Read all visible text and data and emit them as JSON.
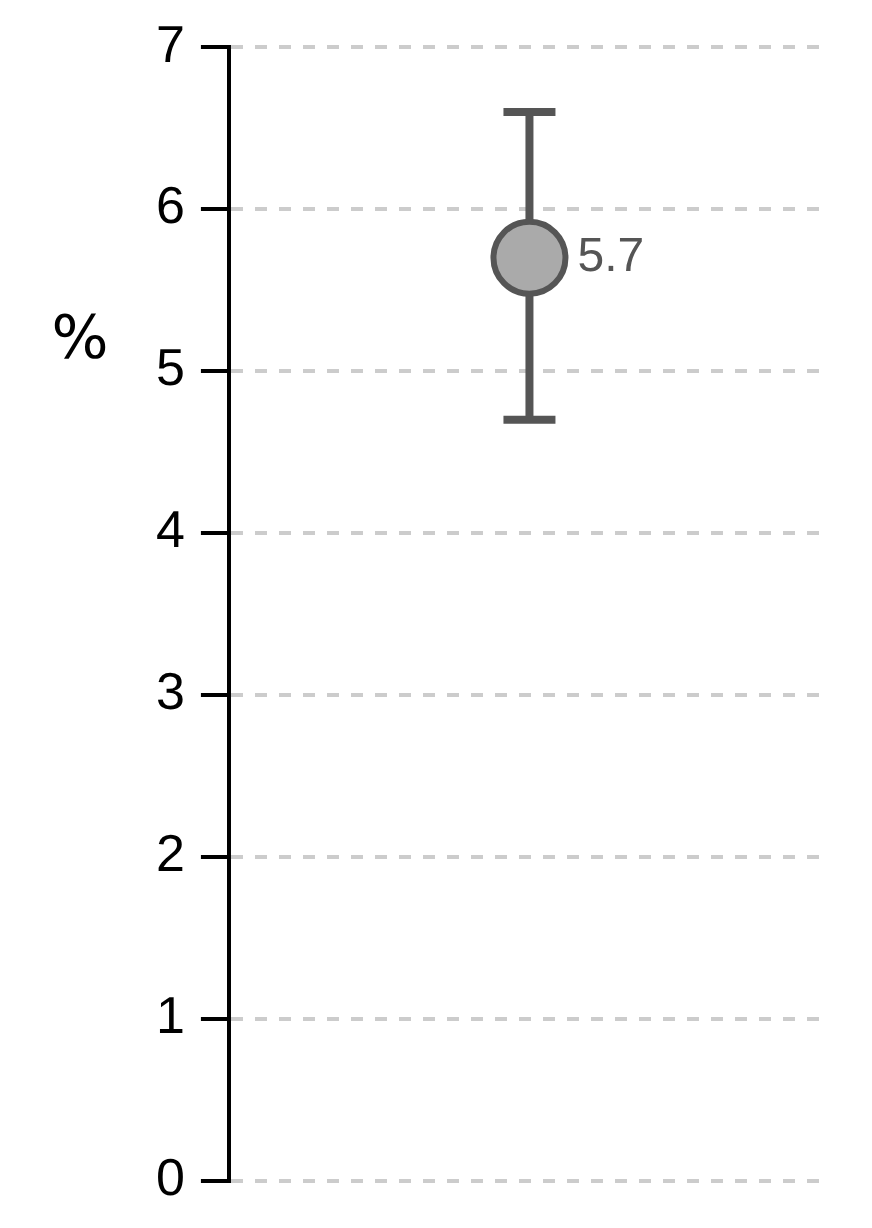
{
  "chart_data": {
    "type": "scatter",
    "ylabel": "%",
    "categories": [
      null
    ],
    "series": [
      {
        "color": "#aaaaaa",
        "values": [
          5.7
        ],
        "errors": [
          [
            4.7,
            6.6
          ]
        ]
      }
    ],
    "ylim": [
      0,
      7
    ],
    "yticks": [
      0,
      1,
      2,
      3,
      4,
      5,
      6,
      7
    ],
    "grid": "y",
    "marker": "circle",
    "data_labels": true,
    "legend": false
  }
}
